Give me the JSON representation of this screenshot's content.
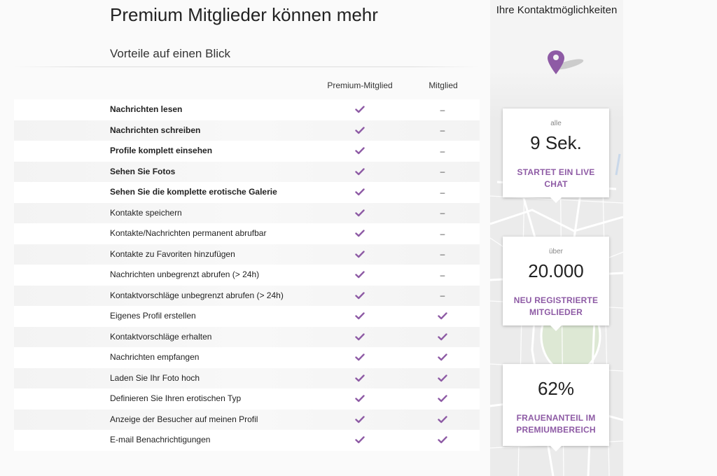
{
  "header": {
    "title": "Premium Mitglieder können mehr",
    "subtitle": "Vorteile auf einen Blick"
  },
  "columns": {
    "premium": "Premium-Mitglied",
    "member": "Mitglied"
  },
  "symbols": {
    "dash": "–"
  },
  "colors": {
    "accent": "#8e5ba5",
    "check": "#8e5ba5"
  },
  "features": [
    {
      "label": "Nachrichten lesen",
      "bold": true,
      "premium": true,
      "member": false
    },
    {
      "label": "Nachrichten schreiben",
      "bold": true,
      "premium": true,
      "member": false
    },
    {
      "label": "Profile komplett einsehen",
      "bold": true,
      "premium": true,
      "member": false
    },
    {
      "label": "Sehen Sie Fotos",
      "bold": true,
      "premium": true,
      "member": false
    },
    {
      "label": "Sehen Sie die komplette erotische Galerie",
      "bold": true,
      "premium": true,
      "member": false
    },
    {
      "label": "Kontakte speichern",
      "bold": false,
      "premium": true,
      "member": false
    },
    {
      "label": "Kontakte/Nachrichten permanent abrufbar",
      "bold": false,
      "premium": true,
      "member": false
    },
    {
      "label": "Kontakte zu Favoriten hinzufügen",
      "bold": false,
      "premium": true,
      "member": false
    },
    {
      "label": "Nachrichten unbegrenzt abrufen (> 24h)",
      "bold": false,
      "premium": true,
      "member": false
    },
    {
      "label": "Kontaktvorschläge unbegrenzt abrufen (> 24h)",
      "bold": false,
      "premium": true,
      "member": false
    },
    {
      "label": "Eigenes Profil erstellen",
      "bold": false,
      "premium": true,
      "member": true
    },
    {
      "label": "Kontaktvorschläge erhalten",
      "bold": false,
      "premium": true,
      "member": true
    },
    {
      "label": "Nachrichten empfangen",
      "bold": false,
      "premium": true,
      "member": true
    },
    {
      "label": "Laden Sie Ihr Foto hoch",
      "bold": false,
      "premium": true,
      "member": true
    },
    {
      "label": "Definieren Sie Ihren erotischen Typ",
      "bold": false,
      "premium": true,
      "member": true
    },
    {
      "label": "Anzeige der Besucher auf meinen Profil",
      "bold": false,
      "premium": true,
      "member": true
    },
    {
      "label": "E-mail Benachrichtigungen",
      "bold": false,
      "premium": true,
      "member": true
    }
  ],
  "sidebar": {
    "title": "Ihre Kontaktmöglichkeiten",
    "pin_icon": "map-pin-icon",
    "stats": [
      {
        "pre": "alle",
        "value": "9 Sek.",
        "caption": "STARTET EIN LIVE CHAT"
      },
      {
        "pre": "über",
        "value": "20.000",
        "caption": "NEU REGISTRIERTE MITGLIEDER"
      },
      {
        "pre": "",
        "value": "62%",
        "caption": "FRAUENANTEIL IM PREMIUMBEREICH"
      }
    ]
  }
}
